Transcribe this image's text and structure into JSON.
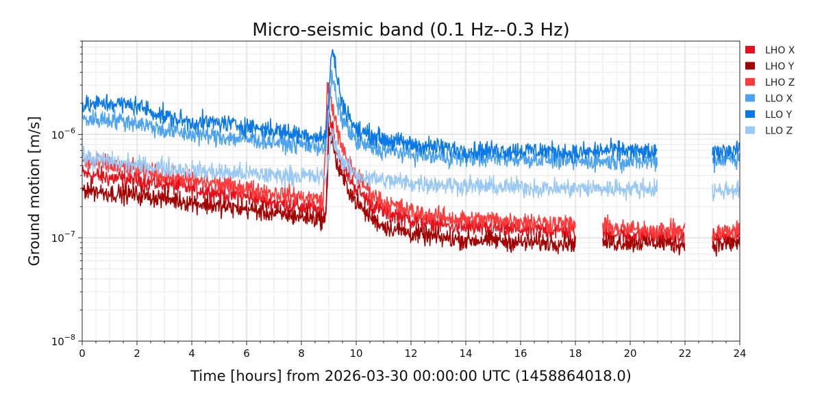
{
  "chart_data": {
    "type": "line",
    "title": "Micro-seismic band (0.1 Hz--0.3 Hz)",
    "xlabel": "Time [hours] from 2026-03-30 00:00:00 UTC (1458864018.0)",
    "ylabel": "Ground motion [m/s]",
    "xlim": [
      0,
      24
    ],
    "ylim": [
      1e-08,
      8e-06
    ],
    "yscale": "log",
    "grid": true,
    "legend_position": "outside-right",
    "x_ticks": [
      "0",
      "2",
      "4",
      "6",
      "8",
      "10",
      "12",
      "14",
      "16",
      "18",
      "20",
      "22",
      "24"
    ],
    "y_ticks": [
      {
        "base": "10",
        "exp": "−8",
        "value": 1e-08
      },
      {
        "base": "10",
        "exp": "−7",
        "value": 1e-07
      },
      {
        "base": "10",
        "exp": "−6",
        "value": 1e-06
      }
    ],
    "series": [
      {
        "name": "LHO X",
        "color": "#e8101a",
        "segments": [
          [
            0,
            18
          ],
          [
            19,
            22
          ],
          [
            23,
            24
          ]
        ],
        "x": [
          0,
          1,
          2,
          3,
          4,
          5,
          6,
          7,
          8,
          8.9,
          9.0,
          9.1,
          9.2,
          9.3,
          9.5,
          10,
          10.5,
          11,
          12,
          13,
          14,
          15,
          16,
          17,
          18,
          19,
          20,
          21,
          22,
          23,
          24
        ],
        "values": [
          4.2e-07,
          3.8e-07,
          3.6e-07,
          3.3e-07,
          3e-07,
          2.7e-07,
          2.5e-07,
          2.2e-07,
          2e-07,
          1.8e-07,
          1.6e-06,
          1.3e-06,
          1e-06,
          7e-07,
          5e-07,
          3e-07,
          2.2e-07,
          1.8e-07,
          1.5e-07,
          1.35e-07,
          1.25e-07,
          1.25e-07,
          1.2e-07,
          1.2e-07,
          1.15e-07,
          1.1e-07,
          1.05e-07,
          1.05e-07,
          1e-07,
          1e-07,
          1.05e-07
        ]
      },
      {
        "name": "LHO Y",
        "color": "#a30000",
        "segments": [
          [
            0,
            18
          ],
          [
            19,
            22
          ],
          [
            23,
            24
          ]
        ],
        "x": [
          0,
          1,
          2,
          3,
          4,
          5,
          6,
          7,
          8,
          8.9,
          9.0,
          9.1,
          9.2,
          9.3,
          9.5,
          10,
          10.5,
          11,
          12,
          13,
          14,
          15,
          16,
          17,
          18,
          19,
          20,
          21,
          22,
          23,
          24
        ],
        "values": [
          3e-07,
          2.7e-07,
          2.6e-07,
          2.4e-07,
          2.2e-07,
          2e-07,
          1.9e-07,
          1.7e-07,
          1.6e-07,
          1.5e-07,
          1.2e-06,
          9e-07,
          7e-07,
          5e-07,
          3.8e-07,
          2.2e-07,
          1.6e-07,
          1.3e-07,
          1.1e-07,
          1e-07,
          9.5e-08,
          9.5e-08,
          9e-08,
          9e-08,
          9e-08,
          9e-08,
          9e-08,
          9e-08,
          8.5e-08,
          8.5e-08,
          9e-08
        ]
      },
      {
        "name": "LHO Z",
        "color": "#ff3b3b",
        "segments": [
          [
            0,
            18
          ],
          [
            19,
            22
          ],
          [
            23,
            24
          ]
        ],
        "x": [
          0,
          1,
          2,
          3,
          4,
          5,
          6,
          7,
          8,
          8.8,
          8.95,
          9.05,
          9.2,
          9.3,
          9.5,
          10,
          10.5,
          11,
          12,
          13,
          14,
          15,
          16,
          17,
          18,
          19,
          20,
          21,
          22,
          23,
          24
        ],
        "values": [
          5.5e-07,
          5e-07,
          4.5e-07,
          4e-07,
          3.6e-07,
          3.3e-07,
          3e-07,
          2.7e-07,
          2.5e-07,
          2.3e-07,
          3e-06,
          2.4e-06,
          1.6e-06,
          1.1e-06,
          7e-07,
          4e-07,
          2.8e-07,
          2.2e-07,
          1.8e-07,
          1.6e-07,
          1.5e-07,
          1.5e-07,
          1.45e-07,
          1.4e-07,
          1.35e-07,
          1.3e-07,
          1.2e-07,
          1.2e-07,
          1.15e-07,
          1.1e-07,
          1.2e-07
        ]
      },
      {
        "name": "LLO X",
        "color": "#4ea3f0",
        "segments": [
          [
            0,
            21
          ],
          [
            23,
            24
          ]
        ],
        "x": [
          0,
          1,
          2,
          3,
          4,
          5,
          6,
          7,
          8,
          8.9,
          9.1,
          9.2,
          9.3,
          9.5,
          10,
          10.5,
          11,
          12,
          13,
          14,
          15,
          16,
          17,
          18,
          19,
          20,
          21,
          23,
          24
        ],
        "values": [
          1.4e-06,
          1.4e-06,
          1.3e-06,
          1.1e-06,
          1e-06,
          9.5e-07,
          9e-07,
          8.5e-07,
          8e-07,
          7.5e-07,
          3.5e-06,
          3e-06,
          2e-06,
          1.4e-06,
          8.5e-07,
          7.5e-07,
          7e-07,
          6.5e-07,
          6e-07,
          6e-07,
          6e-07,
          5.8e-07,
          5.8e-07,
          5.5e-07,
          5.5e-07,
          5.5e-07,
          5.5e-07,
          5.5e-07,
          6e-07
        ]
      },
      {
        "name": "LLO Y",
        "color": "#0a78e6",
        "segments": [
          [
            0,
            21
          ],
          [
            23,
            24
          ]
        ],
        "x": [
          0,
          1,
          2,
          3,
          4,
          5,
          6,
          7,
          8,
          8.9,
          9.1,
          9.2,
          9.3,
          9.5,
          10,
          10.5,
          11,
          12,
          13,
          14,
          15,
          16,
          17,
          18,
          19,
          20,
          21,
          23,
          24
        ],
        "values": [
          1.9e-06,
          2e-06,
          1.9e-06,
          1.5e-06,
          1.3e-06,
          1.3e-06,
          1.2e-06,
          1.1e-06,
          1e-06,
          9.5e-07,
          6.5e-06,
          5.5e-06,
          3.5e-06,
          2e-06,
          1.1e-06,
          1e-06,
          9e-07,
          8e-07,
          7.5e-07,
          7e-07,
          7e-07,
          7e-07,
          7e-07,
          6.5e-07,
          7e-07,
          7e-07,
          6.5e-07,
          6.5e-07,
          7.5e-07
        ]
      },
      {
        "name": "LLO Z",
        "color": "#99c8f5",
        "segments": [
          [
            0,
            21
          ],
          [
            23,
            24
          ]
        ],
        "x": [
          0,
          1,
          2,
          3,
          4,
          5,
          6,
          7,
          8,
          8.9,
          9.1,
          9.2,
          9.3,
          9.5,
          10,
          10.5,
          11,
          12,
          13,
          14,
          15,
          16,
          17,
          18,
          19,
          20,
          21,
          23,
          24
        ],
        "values": [
          6e-07,
          5.5e-07,
          5e-07,
          4.8e-07,
          4.5e-07,
          4.3e-07,
          4.2e-07,
          4e-07,
          4e-07,
          3.8e-07,
          1e-06,
          9e-07,
          7e-07,
          5.5e-07,
          4e-07,
          3.8e-07,
          3.6e-07,
          3.4e-07,
          3.3e-07,
          3.2e-07,
          3.1e-07,
          3.1e-07,
          3e-07,
          3e-07,
          3e-07,
          3e-07,
          3e-07,
          2.8e-07,
          3e-07
        ]
      }
    ]
  }
}
